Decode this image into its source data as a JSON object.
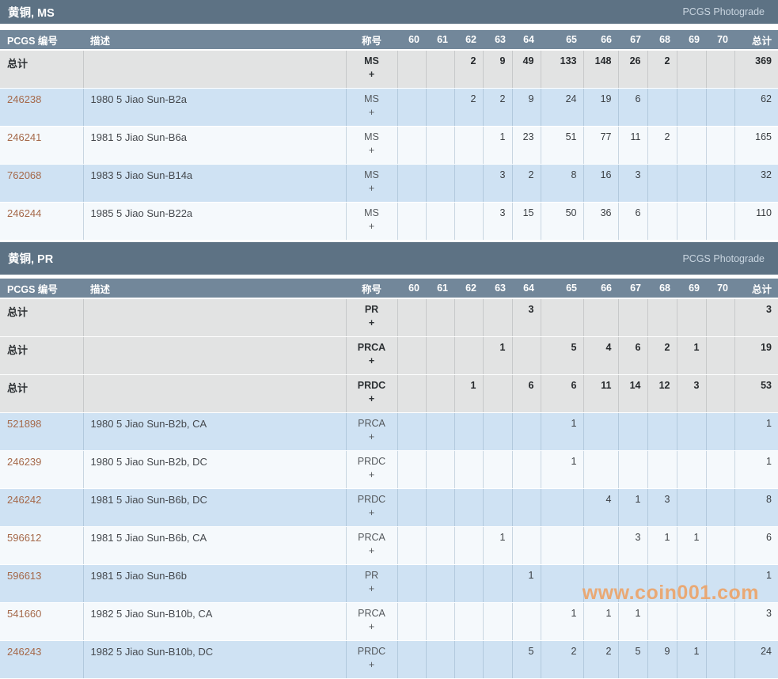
{
  "page": {
    "watermark": "www.coin001.com"
  },
  "colors": {
    "section_bar": "#5d7284",
    "column_header": "#72879a",
    "total_row_bg": "#e2e3e3",
    "row_blue_bg": "#cfe2f3",
    "row_white_bg": "#f5f9fc",
    "pcgs_link": "#a5694a",
    "watermark": "#ee9f5f"
  },
  "table_columns": {
    "pcgs_label": "PCGS 编号",
    "desc_label": "描述",
    "designation_label": "称号",
    "grades": [
      "60",
      "61",
      "62",
      "63",
      "64",
      "65",
      "66",
      "67",
      "68",
      "69",
      "70"
    ],
    "total_label": "总计"
  },
  "sections": [
    {
      "kind": "ms",
      "title": "黄铜, MS",
      "photograde_label": "PCGS Photograde",
      "rows": [
        {
          "type": "total",
          "label": "总计",
          "description": "",
          "designation": "MS",
          "plus": "+",
          "grades": [
            "",
            "",
            "2",
            "9",
            "49",
            "133",
            "148",
            "26",
            "2",
            "",
            ""
          ],
          "total": "369"
        },
        {
          "type": "data",
          "shade": "blue",
          "pcgs": "246238",
          "description": "1980 5 Jiao Sun-B2a",
          "designation": "MS",
          "plus": "+",
          "grades": [
            "",
            "",
            "2",
            "2",
            "9",
            "24",
            "19",
            "6",
            "",
            "",
            ""
          ],
          "total": "62"
        },
        {
          "type": "data",
          "shade": "white",
          "pcgs": "246241",
          "description": "1981 5 Jiao Sun-B6a",
          "designation": "MS",
          "plus": "+",
          "grades": [
            "",
            "",
            "",
            "1",
            "23",
            "51",
            "77",
            "11",
            "2",
            "",
            ""
          ],
          "total": "165"
        },
        {
          "type": "data",
          "shade": "blue",
          "pcgs": "762068",
          "description": "1983 5 Jiao Sun-B14a",
          "designation": "MS",
          "plus": "+",
          "grades": [
            "",
            "",
            "",
            "3",
            "2",
            "8",
            "16",
            "3",
            "",
            "",
            ""
          ],
          "total": "32"
        },
        {
          "type": "data",
          "shade": "white",
          "pcgs": "246244",
          "description": "1985 5 Jiao Sun-B22a",
          "designation": "MS",
          "plus": "+",
          "grades": [
            "",
            "",
            "",
            "3",
            "15",
            "50",
            "36",
            "6",
            "",
            "",
            ""
          ],
          "total": "110"
        }
      ]
    },
    {
      "kind": "pr",
      "title": "黄铜, PR",
      "photograde_label": "PCGS Photograde",
      "rows": [
        {
          "type": "total",
          "label": "总计",
          "description": "",
          "designation": "PR",
          "plus": "+",
          "grades": [
            "",
            "",
            "",
            "",
            "3",
            "",
            "",
            "",
            "",
            "",
            ""
          ],
          "total": "3"
        },
        {
          "type": "total",
          "label": "总计",
          "description": "",
          "designation": "PRCA",
          "plus": "+",
          "grades": [
            "",
            "",
            "",
            "1",
            "",
            "5",
            "4",
            "6",
            "2",
            "1",
            ""
          ],
          "total": "19"
        },
        {
          "type": "total",
          "label": "总计",
          "description": "",
          "designation": "PRDC",
          "plus": "+",
          "grades": [
            "",
            "",
            "1",
            "",
            "6",
            "6",
            "11",
            "14",
            "12",
            "3",
            ""
          ],
          "total": "53"
        },
        {
          "type": "data",
          "shade": "blue",
          "pcgs": "521898",
          "description": "1980 5 Jiao Sun-B2b, CA",
          "designation": "PRCA",
          "plus": "+",
          "grades": [
            "",
            "",
            "",
            "",
            "",
            "1",
            "",
            "",
            "",
            "",
            ""
          ],
          "total": "1"
        },
        {
          "type": "data",
          "shade": "white",
          "pcgs": "246239",
          "description": "1980 5 Jiao Sun-B2b, DC",
          "designation": "PRDC",
          "plus": "+",
          "grades": [
            "",
            "",
            "",
            "",
            "",
            "1",
            "",
            "",
            "",
            "",
            ""
          ],
          "total": "1"
        },
        {
          "type": "data",
          "shade": "blue",
          "pcgs": "246242",
          "description": "1981 5 Jiao Sun-B6b, DC",
          "designation": "PRDC",
          "plus": "+",
          "grades": [
            "",
            "",
            "",
            "",
            "",
            "",
            "4",
            "1",
            "3",
            "",
            ""
          ],
          "total": "8"
        },
        {
          "type": "data",
          "shade": "white",
          "pcgs": "596612",
          "description": "1981 5 Jiao Sun-B6b, CA",
          "designation": "PRCA",
          "plus": "+",
          "grades": [
            "",
            "",
            "",
            "1",
            "",
            "",
            "",
            "3",
            "1",
            "1",
            ""
          ],
          "total": "6"
        },
        {
          "type": "data",
          "shade": "blue",
          "pcgs": "596613",
          "description": "1981 5 Jiao Sun-B6b",
          "designation": "PR",
          "plus": "+",
          "grades": [
            "",
            "",
            "",
            "",
            "1",
            "",
            "",
            "",
            "",
            "",
            ""
          ],
          "total": "1"
        },
        {
          "type": "data",
          "shade": "white",
          "pcgs": "541660",
          "description": "1982 5 Jiao Sun-B10b, CA",
          "designation": "PRCA",
          "plus": "+",
          "grades": [
            "",
            "",
            "",
            "",
            "",
            "1",
            "1",
            "1",
            "",
            "",
            ""
          ],
          "total": "3"
        },
        {
          "type": "data",
          "shade": "blue",
          "pcgs": "246243",
          "description": "1982 5 Jiao Sun-B10b, DC",
          "designation": "PRDC",
          "plus": "+",
          "grades": [
            "",
            "",
            "",
            "",
            "5",
            "2",
            "2",
            "5",
            "9",
            "1",
            ""
          ],
          "total": "24"
        }
      ]
    }
  ]
}
